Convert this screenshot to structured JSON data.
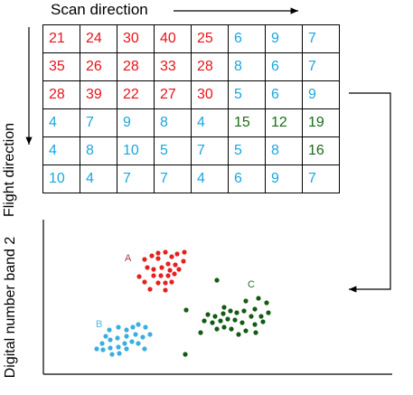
{
  "labels": {
    "scan_direction": "Scan direction",
    "flight_direction": "Flight direction",
    "y_axis": "Digital number band 2"
  },
  "colors": {
    "red": "#e8141a",
    "blue": "#1aa7de",
    "green": "#1a6b1a",
    "cluster_a": "#e62020",
    "cluster_b": "#3aaee0",
    "cluster_c": "#145a14",
    "cluster_a_label": "#b03a3a",
    "cluster_b_label": "#5ab4e0",
    "cluster_c_label": "#2e6b2e"
  },
  "grid": [
    [
      {
        "v": "21",
        "c": "red"
      },
      {
        "v": "24",
        "c": "red"
      },
      {
        "v": "30",
        "c": "red"
      },
      {
        "v": "40",
        "c": "red"
      },
      {
        "v": "25",
        "c": "red"
      },
      {
        "v": "6",
        "c": "blue"
      },
      {
        "v": "9",
        "c": "blue"
      },
      {
        "v": "7",
        "c": "blue"
      }
    ],
    [
      {
        "v": "35",
        "c": "red"
      },
      {
        "v": "26",
        "c": "red"
      },
      {
        "v": "28",
        "c": "red"
      },
      {
        "v": "33",
        "c": "red"
      },
      {
        "v": "28",
        "c": "red"
      },
      {
        "v": "8",
        "c": "blue"
      },
      {
        "v": "6",
        "c": "blue"
      },
      {
        "v": "7",
        "c": "blue"
      }
    ],
    [
      {
        "v": "28",
        "c": "red"
      },
      {
        "v": "39",
        "c": "red"
      },
      {
        "v": "22",
        "c": "red"
      },
      {
        "v": "27",
        "c": "red"
      },
      {
        "v": "30",
        "c": "red"
      },
      {
        "v": "5",
        "c": "blue"
      },
      {
        "v": "6",
        "c": "blue"
      },
      {
        "v": "9",
        "c": "blue"
      }
    ],
    [
      {
        "v": "4",
        "c": "blue"
      },
      {
        "v": "7",
        "c": "blue"
      },
      {
        "v": "9",
        "c": "blue"
      },
      {
        "v": "8",
        "c": "blue"
      },
      {
        "v": "4",
        "c": "blue"
      },
      {
        "v": "15",
        "c": "green"
      },
      {
        "v": "12",
        "c": "green"
      },
      {
        "v": "19",
        "c": "green"
      }
    ],
    [
      {
        "v": "4",
        "c": "blue"
      },
      {
        "v": "8",
        "c": "blue"
      },
      {
        "v": "10",
        "c": "blue"
      },
      {
        "v": "5",
        "c": "blue"
      },
      {
        "v": "7",
        "c": "blue"
      },
      {
        "v": "5",
        "c": "blue"
      },
      {
        "v": "8",
        "c": "blue"
      },
      {
        "v": "16",
        "c": "green"
      }
    ],
    [
      {
        "v": "10",
        "c": "blue"
      },
      {
        "v": "4",
        "c": "blue"
      },
      {
        "v": "7",
        "c": "blue"
      },
      {
        "v": "7",
        "c": "blue"
      },
      {
        "v": "4",
        "c": "blue"
      },
      {
        "v": "6",
        "c": "blue"
      },
      {
        "v": "9",
        "c": "blue"
      },
      {
        "v": "7",
        "c": "blue"
      }
    ]
  ],
  "clusters": [
    {
      "label": "A",
      "color": "cluster_a",
      "label_color": "cluster_a_label"
    },
    {
      "label": "B",
      "color": "cluster_b",
      "label_color": "cluster_b_label"
    },
    {
      "label": "C",
      "color": "cluster_c",
      "label_color": "cluster_c_label"
    }
  ]
}
